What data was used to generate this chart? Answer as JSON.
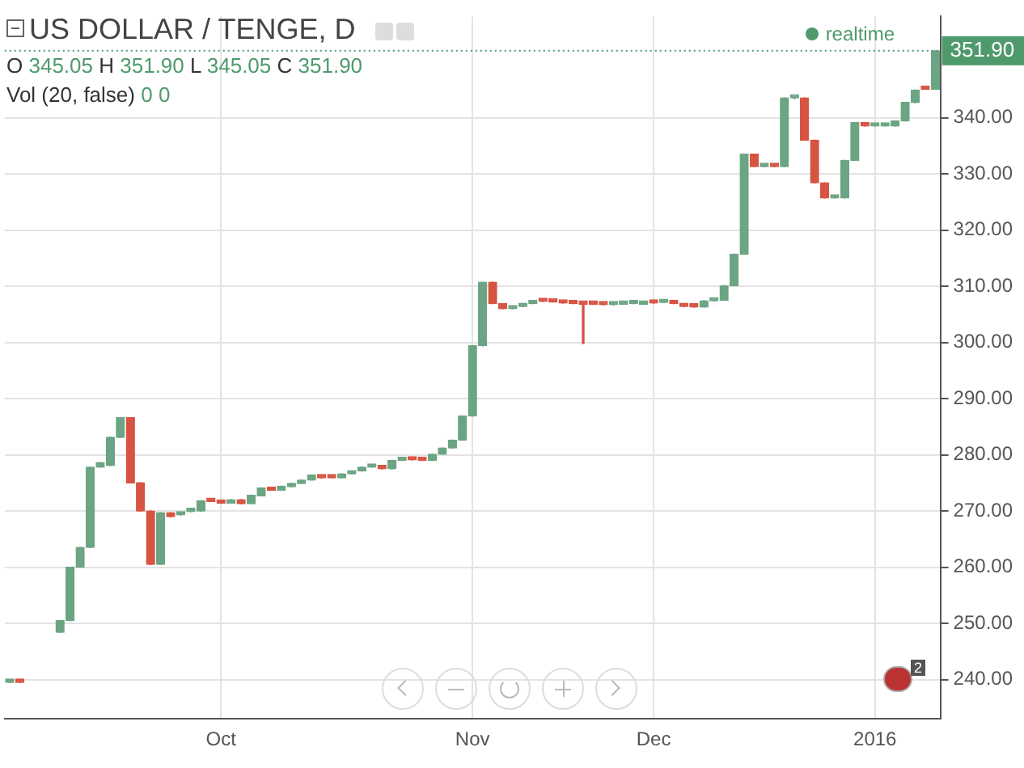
{
  "chart_data": {
    "type": "candlestick",
    "title": "US DOLLAR / TENGE, D",
    "subtitle": "O 345.05 H 351.90 L 345.05 C 351.90",
    "annotations": [
      "Vol (20, false)",
      "0 0",
      "realtime",
      "2"
    ],
    "categories": [
      null,
      null,
      null,
      null,
      null,
      null,
      null,
      null,
      null,
      null,
      null,
      null,
      null,
      null,
      null,
      null,
      null,
      null,
      null,
      null,
      null,
      "Oct",
      null,
      null,
      null,
      null,
      null,
      null,
      null,
      null,
      null,
      null,
      null,
      null,
      null,
      null,
      null,
      null,
      null,
      null,
      null,
      null,
      null,
      null,
      null,
      null,
      "Nov",
      null,
      null,
      null,
      null,
      null,
      null,
      null,
      null,
      null,
      null,
      null,
      null,
      null,
      null,
      null,
      null,
      null,
      "Dec",
      null,
      null,
      null,
      null,
      null,
      null,
      null,
      null,
      null,
      null,
      null,
      null,
      null,
      null,
      null,
      null,
      null,
      null,
      null,
      null,
      null,
      "2016",
      null,
      null,
      null,
      null,
      null,
      null
    ],
    "ohlc": [
      [
        239.5,
        239.7,
        239.5,
        239.7
      ],
      [
        239.7,
        239.7,
        239.5,
        239.5
      ],
      null,
      null,
      null,
      [
        248.4,
        250.5,
        248.4,
        250.5
      ],
      [
        250.5,
        260.0,
        250.5,
        260.0
      ],
      [
        260.0,
        263.5,
        260.0,
        263.5
      ],
      [
        263.5,
        277.8,
        263.5,
        277.8
      ],
      [
        277.8,
        278.6,
        277.8,
        278.6
      ],
      [
        278.1,
        283.1,
        278.1,
        283.1
      ],
      [
        283.1,
        286.6,
        283.1,
        286.6
      ],
      [
        286.6,
        286.6,
        275.0,
        275.0
      ],
      [
        275.0,
        275.0,
        270.0,
        270.0
      ],
      [
        270.0,
        270.0,
        260.5,
        260.5
      ],
      [
        260.5,
        269.7,
        260.5,
        269.7
      ],
      [
        269.7,
        269.7,
        269.0,
        269.0
      ],
      [
        269.3,
        269.8,
        269.3,
        269.8
      ],
      [
        269.9,
        270.0,
        269.9,
        270.0
      ],
      [
        270.0,
        271.8,
        270.0,
        271.8
      ],
      [
        271.9,
        271.9,
        271.7,
        271.7
      ],
      [
        271.9,
        271.9,
        271.4,
        271.4
      ],
      [
        271.4,
        272.0,
        271.4,
        272.0
      ],
      [
        272.0,
        272.0,
        271.3,
        271.3
      ],
      [
        271.3,
        272.8,
        271.3,
        272.8
      ],
      [
        272.7,
        274.1,
        272.7,
        274.1
      ],
      [
        274.1,
        274.1,
        273.7,
        273.7
      ],
      [
        273.7,
        274.4,
        273.7,
        274.4
      ],
      [
        274.3,
        274.9,
        274.3,
        274.9
      ],
      [
        274.9,
        275.5,
        274.9,
        275.5
      ],
      [
        275.5,
        276.4,
        275.5,
        276.4
      ],
      [
        276.4,
        276.4,
        275.9,
        275.9
      ],
      [
        276.0,
        276.0,
        275.9,
        275.9
      ],
      [
        275.9,
        276.6,
        275.9,
        276.6
      ],
      [
        276.6,
        277.1,
        276.6,
        277.1
      ],
      [
        277.1,
        277.8,
        277.1,
        277.8
      ],
      [
        277.8,
        278.1,
        277.8,
        278.1
      ],
      [
        278.1,
        278.1,
        277.5,
        277.5
      ],
      [
        277.5,
        279.0,
        277.5,
        279.0
      ],
      [
        279.0,
        279.2,
        279.0,
        279.2
      ],
      [
        279.2,
        279.2,
        279.1,
        279.1
      ],
      [
        279.1,
        279.1,
        279.0,
        279.0
      ],
      [
        279.0,
        280.1,
        279.0,
        280.1
      ],
      [
        280.1,
        281.2,
        280.1,
        281.2
      ],
      [
        281.2,
        282.6,
        281.2,
        282.6
      ],
      [
        282.6,
        286.9,
        282.6,
        286.9
      ],
      [
        286.9,
        299.4,
        286.9,
        299.4
      ],
      [
        299.4,
        310.7,
        299.4,
        310.7
      ],
      [
        310.7,
        310.7,
        306.9,
        306.9
      ],
      [
        306.9,
        306.9,
        306.0,
        306.0
      ],
      [
        306.0,
        306.2,
        306.0,
        306.2
      ],
      [
        306.4,
        306.9,
        306.4,
        306.9
      ],
      [
        306.9,
        307.4,
        306.9,
        307.4
      ],
      [
        307.4,
        307.4,
        307.3,
        307.3
      ],
      [
        307.3,
        307.3,
        307.2,
        307.2
      ],
      [
        307.3,
        307.3,
        307.0,
        307.0
      ],
      [
        307.0,
        307.0,
        306.9,
        306.9
      ],
      [
        307.1,
        307.1,
        299.8,
        306.8
      ],
      [
        306.9,
        306.9,
        306.8,
        306.8
      ],
      [
        306.8,
        306.8,
        306.7,
        306.7
      ],
      [
        306.7,
        306.8,
        306.7,
        306.8
      ],
      [
        306.8,
        306.9,
        306.8,
        306.9
      ],
      [
        306.9,
        307.0,
        306.9,
        307.0
      ],
      [
        306.8,
        307.1,
        306.8,
        307.1
      ],
      [
        307.1,
        307.1,
        307.0,
        307.0
      ],
      [
        307.1,
        307.3,
        307.1,
        307.3
      ],
      [
        307.4,
        307.4,
        306.9,
        306.9
      ],
      [
        306.9,
        306.9,
        306.4,
        306.4
      ],
      [
        306.4,
        306.4,
        306.3,
        306.3
      ],
      [
        306.3,
        307.4,
        306.3,
        307.4
      ],
      [
        307.4,
        307.5,
        307.4,
        307.5
      ],
      [
        307.5,
        310.1,
        307.5,
        310.1
      ],
      [
        310.1,
        315.7,
        310.1,
        315.7
      ],
      [
        315.7,
        333.5,
        315.7,
        333.5
      ],
      [
        333.5,
        333.5,
        331.3,
        331.3
      ],
      [
        331.3,
        331.4,
        331.3,
        331.4
      ],
      [
        331.4,
        331.4,
        331.3,
        331.3
      ],
      [
        331.3,
        343.5,
        331.3,
        343.5
      ],
      [
        343.5,
        343.6,
        343.4,
        343.5
      ],
      [
        343.5,
        343.5,
        336.0,
        336.0
      ],
      [
        336.0,
        336.0,
        328.4,
        328.4
      ],
      [
        328.4,
        328.4,
        325.7,
        325.7
      ],
      [
        325.7,
        325.8,
        325.7,
        325.8
      ],
      [
        325.7,
        332.4,
        325.7,
        332.4
      ],
      [
        332.4,
        339.1,
        332.4,
        339.1
      ],
      [
        339.1,
        339.1,
        338.5,
        338.5
      ],
      [
        338.5,
        338.6,
        338.5,
        338.6
      ],
      [
        338.5,
        338.6,
        338.5,
        338.6
      ],
      [
        338.5,
        339.4,
        338.5,
        339.4
      ],
      [
        339.4,
        342.7,
        339.4,
        342.7
      ],
      [
        342.7,
        344.9,
        342.7,
        344.9
      ],
      [
        345.1,
        345.1,
        345.05,
        345.05
      ],
      [
        345.05,
        351.9,
        345.05,
        351.9
      ]
    ],
    "colors": [
      "#6ba583",
      "#d75442",
      null,
      null,
      null,
      "#6ba583",
      "#6ba583",
      "#6ba583",
      "#6ba583",
      "#6ba583",
      "#6ba583",
      "#6ba583",
      "#d75442",
      "#d75442",
      "#d75442",
      "#6ba583",
      "#d75442",
      "#6ba583",
      "#6ba583",
      "#6ba583",
      "#d75442",
      "#d75442",
      "#6ba583",
      "#d75442",
      "#6ba583",
      "#6ba583",
      "#d75442",
      "#6ba583",
      "#6ba583",
      "#6ba583",
      "#6ba583",
      "#d75442",
      "#d75442",
      "#6ba583",
      "#6ba583",
      "#6ba583",
      "#6ba583",
      "#d75442",
      "#6ba583",
      "#6ba583",
      "#d75442",
      "#d75442",
      "#6ba583",
      "#6ba583",
      "#6ba583",
      "#6ba583",
      "#6ba583",
      "#6ba583",
      "#d75442",
      "#d75442",
      "#6ba583",
      "#6ba583",
      "#6ba583",
      "#d75442",
      "#d75442",
      "#d75442",
      "#d75442",
      "#d75442",
      "#d75442",
      "#d75442",
      "#6ba583",
      "#6ba583",
      "#6ba583",
      "#6ba583",
      "#d75442",
      "#6ba583",
      "#d75442",
      "#d75442",
      "#d75442",
      "#6ba583",
      "#6ba583",
      "#6ba583",
      "#6ba583",
      "#6ba583",
      "#d75442",
      "#6ba583",
      "#d75442",
      "#6ba583",
      "#6ba583",
      "#d75442",
      "#d75442",
      "#d75442",
      "#6ba583",
      "#6ba583",
      "#6ba583",
      "#d75442",
      "#6ba583",
      "#6ba583",
      "#6ba583",
      "#6ba583",
      "#6ba583",
      "#d75442",
      "#6ba583"
    ],
    "ylim": [
      233,
      358
    ],
    "yticks": [
      {
        "value": 240,
        "label": "240.00"
      },
      {
        "value": 250,
        "label": "250.00"
      },
      {
        "value": 260,
        "label": "260.00"
      },
      {
        "value": 270,
        "label": "270.00"
      },
      {
        "value": 280,
        "label": "280.00"
      },
      {
        "value": 290,
        "label": "290.00"
      },
      {
        "value": 300,
        "label": "300.00"
      },
      {
        "value": 310,
        "label": "310.00"
      },
      {
        "value": 320,
        "label": "320.00"
      },
      {
        "value": 330,
        "label": "330.00"
      },
      {
        "value": 340,
        "label": "340.00"
      }
    ],
    "ref_lines": [
      {
        "axis": "y",
        "value": 351.9,
        "label": "351.90",
        "color": "#4f9a6c",
        "line_style": "dotted"
      }
    ],
    "grid": true,
    "legend": false
  }
}
